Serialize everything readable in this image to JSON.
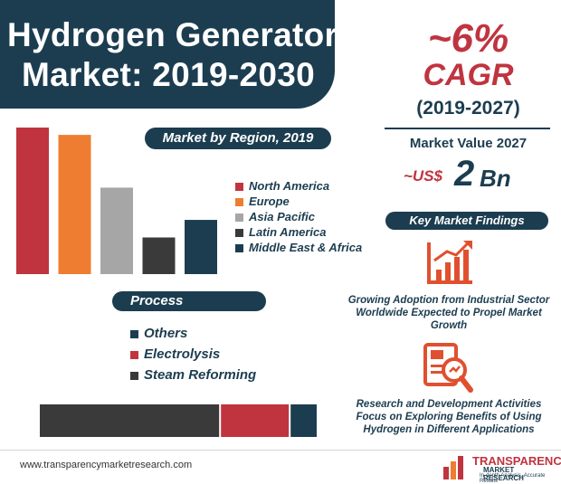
{
  "title": {
    "line1": "Hydrogen Generator",
    "line2": "Market: 2019-2030"
  },
  "cagr": {
    "value": "~6%",
    "label": "CAGR",
    "period": "(2019-2027)"
  },
  "market_value": {
    "label": "Market Value 2027",
    "prefix": "~US$",
    "number": "2",
    "unit": "Bn"
  },
  "region_section": {
    "title": "Market by Region, 2019"
  },
  "process_section": {
    "title": "Process"
  },
  "findings_section": {
    "title": "Key Market Findings",
    "items": [
      {
        "text": "Growing Adoption from Industrial Sector Worldwide Expected to Propel Market Growth"
      },
      {
        "text": "Research and Development Activities Focus on Exploring Benefits of Using Hydrogen in Different Applications"
      }
    ]
  },
  "footer": {
    "url": "www.transparencymarketresearch.com",
    "logo_line1": "TRANSPARENCY",
    "logo_line2": "MARKET RESEARCH",
    "logo_tagline": "In-depth Analysis. Accurate Results"
  },
  "chart_data": [
    {
      "type": "bar",
      "title": "Market by Region, 2019",
      "categories": [
        "North America",
        "Europe",
        "Asia Pacific",
        "Latin America",
        "Middle East & Africa"
      ],
      "values": [
        100,
        95,
        59,
        25,
        37
      ],
      "colors": [
        "#c0343f",
        "#ef7d31",
        "#a6a6a6",
        "#3a3a3a",
        "#1c3d50"
      ],
      "ylim": [
        0,
        100
      ],
      "grid": false,
      "legend": "right"
    },
    {
      "type": "bar",
      "title": "Process",
      "stacked": true,
      "orientation": "horizontal",
      "series": [
        {
          "name": "Steam Reforming",
          "values": [
            65
          ]
        },
        {
          "name": "Electrolysis",
          "values": [
            25
          ]
        },
        {
          "name": "Others",
          "values": [
            10
          ]
        }
      ],
      "legend_order": [
        "Others",
        "Electrolysis",
        "Steam Reforming"
      ],
      "colors": {
        "Others": "#1c3d50",
        "Electrolysis": "#c0343f",
        "Steam Reforming": "#3a3a3a"
      },
      "legend": "top"
    }
  ]
}
